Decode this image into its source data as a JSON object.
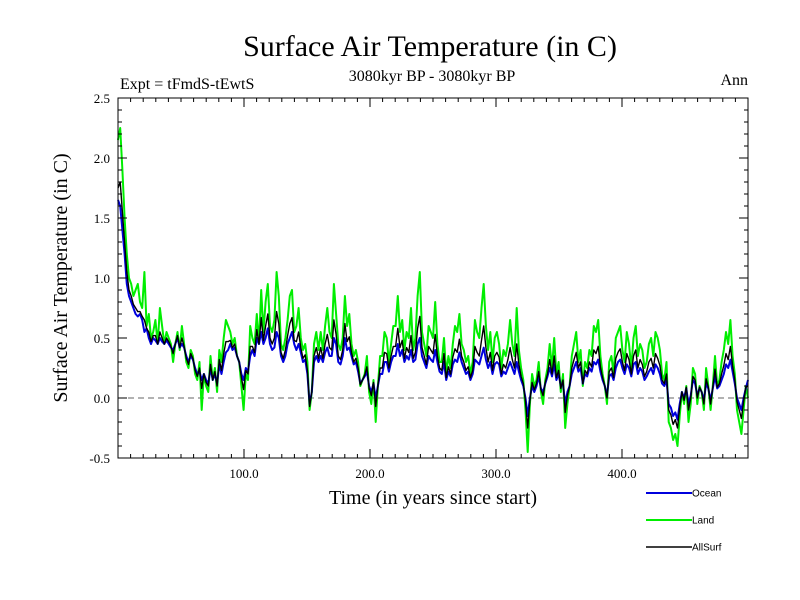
{
  "chart_data": {
    "type": "line",
    "title": "Surface Air Temperature (in C)",
    "subtitle_left": "Expt = tFmdS-tEwtS",
    "subtitle_center": "3080kyr BP - 3080kyr BP",
    "subtitle_right": "Ann",
    "xlabel": "Time (in years since start)",
    "ylabel": "Surface Air Temperature (in C)",
    "xlim": [
      0,
      500
    ],
    "ylim": [
      -0.5,
      2.5
    ],
    "x_ticks": [
      {
        "value": 100,
        "label": "100.0"
      },
      {
        "value": 200,
        "label": "200.0"
      },
      {
        "value": 300,
        "label": "300.0"
      },
      {
        "value": 400,
        "label": "400.0"
      }
    ],
    "y_ticks": [
      {
        "value": -0.5,
        "label": "-0.5"
      },
      {
        "value": 0.0,
        "label": "0.0"
      },
      {
        "value": 0.5,
        "label": "0.5"
      },
      {
        "value": 1.0,
        "label": "1.0"
      },
      {
        "value": 1.5,
        "label": "1.5"
      },
      {
        "value": 2.0,
        "label": "2.0"
      },
      {
        "value": 2.5,
        "label": "2.5"
      }
    ],
    "reference_line": 0.0,
    "series": [
      {
        "name": "Land",
        "color": "#00ee00",
        "values": [
          2.15,
          2.25,
          1.9,
          1.5,
          1.2,
          1.0,
          0.95,
          0.85,
          0.9,
          0.95,
          0.8,
          0.75,
          1.05,
          0.6,
          0.7,
          0.5,
          0.55,
          0.65,
          0.45,
          0.75,
          0.6,
          0.45,
          0.55,
          0.5,
          0.45,
          0.3,
          0.45,
          0.55,
          0.4,
          0.6,
          0.45,
          0.3,
          0.25,
          0.4,
          0.35,
          0.2,
          0.15,
          0.3,
          -0.1,
          0.2,
          0.1,
          0.05,
          0.35,
          0.15,
          0.25,
          0.05,
          0.4,
          0.3,
          0.5,
          0.65,
          0.6,
          0.55,
          0.45,
          0.5,
          0.35,
          0.3,
          0.1,
          -0.1,
          0.2,
          0.15,
          0.6,
          0.5,
          0.45,
          0.7,
          0.45,
          0.9,
          0.55,
          0.8,
          0.95,
          0.6,
          0.55,
          0.65,
          1.05,
          0.85,
          0.45,
          0.4,
          0.5,
          0.65,
          0.85,
          0.9,
          0.55,
          0.6,
          0.75,
          0.5,
          0.4,
          0.45,
          0.3,
          -0.1,
          0.05,
          0.45,
          0.55,
          0.4,
          0.55,
          0.4,
          0.6,
          0.75,
          0.55,
          0.5,
          0.95,
          0.7,
          0.45,
          0.4,
          0.5,
          0.85,
          0.6,
          0.7,
          0.45,
          0.35,
          0.4,
          0.3,
          0.1,
          0.15,
          0.2,
          0.35,
          0.05,
          -0.05,
          0.15,
          -0.2,
          0.1,
          0.35,
          0.35,
          0.55,
          0.5,
          0.3,
          0.45,
          0.6,
          0.6,
          0.85,
          0.55,
          0.65,
          0.4,
          0.55,
          0.5,
          0.75,
          0.4,
          0.5,
          0.85,
          1.05,
          0.55,
          0.45,
          0.35,
          0.6,
          0.55,
          0.5,
          0.8,
          0.45,
          0.3,
          0.3,
          0.5,
          0.2,
          0.35,
          0.25,
          0.45,
          0.6,
          0.55,
          0.7,
          0.45,
          0.4,
          0.3,
          0.35,
          0.2,
          0.3,
          0.65,
          0.55,
          0.5,
          0.75,
          0.95,
          0.6,
          0.4,
          0.55,
          0.3,
          0.5,
          0.55,
          0.45,
          0.25,
          0.4,
          0.35,
          0.45,
          0.65,
          0.45,
          0.35,
          0.75,
          0.4,
          0.25,
          0.15,
          -0.1,
          -0.45,
          -0.05,
          0.2,
          0.1,
          0.15,
          0.3,
          0.05,
          -0.05,
          0.15,
          0.25,
          0.45,
          0.25,
          0.5,
          0.2,
          0.3,
          0.05,
          0.2,
          -0.25,
          -0.05,
          0.1,
          0.35,
          0.45,
          0.55,
          0.3,
          0.4,
          0.1,
          0.3,
          0.25,
          0.4,
          0.35,
          0.6,
          0.55,
          0.65,
          0.35,
          0.2,
          0.1,
          -0.05,
          0.3,
          0.35,
          0.2,
          0.5,
          0.55,
          0.6,
          0.4,
          0.3,
          0.55,
          0.45,
          0.25,
          0.5,
          0.6,
          0.35,
          0.45,
          0.4,
          0.25,
          0.3,
          0.45,
          0.5,
          0.35,
          0.55,
          0.5,
          0.4,
          0.2,
          0.15,
          0.3,
          -0.2,
          -0.25,
          -0.35,
          -0.3,
          -0.4,
          -0.15,
          0.05,
          -0.05,
          0.1,
          -0.2,
          -0.05,
          0.25,
          0.2,
          -0.05,
          0.1,
          0.05,
          -0.1,
          0.25,
          0.1,
          -0.1,
          0.1,
          0.35,
          0.1,
          0.15,
          0.3,
          0.4,
          0.55,
          0.45,
          0.65,
          0.35,
          0.2,
          -0.1,
          -0.2,
          -0.3,
          -0.1,
          0.1,
          0.0
        ]
      },
      {
        "name": "Ocean",
        "color": "#0000dd",
        "values": [
          1.65,
          1.6,
          1.4,
          1.2,
          0.95,
          0.85,
          0.8,
          0.75,
          0.7,
          0.68,
          0.7,
          0.65,
          0.55,
          0.58,
          0.5,
          0.45,
          0.5,
          0.48,
          0.45,
          0.5,
          0.47,
          0.45,
          0.48,
          0.45,
          0.42,
          0.4,
          0.45,
          0.5,
          0.42,
          0.45,
          0.42,
          0.35,
          0.3,
          0.35,
          0.32,
          0.25,
          0.2,
          0.22,
          0.15,
          0.2,
          0.15,
          0.12,
          0.25,
          0.15,
          0.2,
          0.12,
          0.28,
          0.2,
          0.3,
          0.38,
          0.4,
          0.45,
          0.4,
          0.42,
          0.35,
          0.3,
          0.2,
          0.15,
          0.25,
          0.22,
          0.35,
          0.4,
          0.35,
          0.5,
          0.45,
          0.55,
          0.45,
          0.5,
          0.58,
          0.45,
          0.4,
          0.42,
          0.55,
          0.5,
          0.35,
          0.3,
          0.35,
          0.45,
          0.5,
          0.55,
          0.45,
          0.4,
          0.45,
          0.38,
          0.3,
          0.32,
          0.2,
          -0.05,
          0.05,
          0.3,
          0.35,
          0.3,
          0.35,
          0.3,
          0.38,
          0.42,
          0.35,
          0.35,
          0.5,
          0.45,
          0.3,
          0.28,
          0.35,
          0.5,
          0.4,
          0.42,
          0.35,
          0.28,
          0.3,
          0.22,
          0.12,
          0.15,
          0.18,
          0.22,
          0.1,
          0.05,
          0.12,
          0.0,
          0.1,
          0.2,
          0.2,
          0.3,
          0.3,
          0.22,
          0.3,
          0.35,
          0.35,
          0.45,
          0.35,
          0.4,
          0.3,
          0.35,
          0.32,
          0.4,
          0.3,
          0.32,
          0.45,
          0.5,
          0.35,
          0.3,
          0.25,
          0.35,
          0.32,
          0.3,
          0.4,
          0.3,
          0.22,
          0.2,
          0.3,
          0.15,
          0.22,
          0.18,
          0.28,
          0.32,
          0.3,
          0.38,
          0.3,
          0.25,
          0.2,
          0.22,
          0.15,
          0.2,
          0.32,
          0.3,
          0.28,
          0.35,
          0.42,
          0.32,
          0.25,
          0.3,
          0.2,
          0.28,
          0.3,
          0.28,
          0.18,
          0.22,
          0.2,
          0.25,
          0.3,
          0.25,
          0.2,
          0.3,
          0.22,
          0.15,
          0.1,
          0.0,
          -0.15,
          0.0,
          0.1,
          0.05,
          0.1,
          0.18,
          0.08,
          0.05,
          0.12,
          0.18,
          0.25,
          0.18,
          0.28,
          0.15,
          0.2,
          0.1,
          0.12,
          -0.05,
          0.05,
          0.1,
          0.2,
          0.25,
          0.3,
          0.22,
          0.25,
          0.12,
          0.2,
          0.18,
          0.25,
          0.22,
          0.3,
          0.28,
          0.32,
          0.22,
          0.15,
          0.1,
          0.02,
          0.18,
          0.2,
          0.15,
          0.25,
          0.3,
          0.32,
          0.25,
          0.2,
          0.28,
          0.25,
          0.18,
          0.28,
          0.3,
          0.2,
          0.25,
          0.22,
          0.15,
          0.18,
          0.22,
          0.25,
          0.2,
          0.28,
          0.25,
          0.2,
          0.12,
          0.1,
          0.15,
          -0.05,
          -0.08,
          -0.15,
          -0.12,
          -0.18,
          -0.05,
          0.05,
          0.0,
          0.08,
          -0.05,
          0.02,
          0.15,
          0.12,
          0.02,
          0.08,
          0.05,
          -0.02,
          0.12,
          0.08,
          -0.02,
          0.08,
          0.18,
          0.08,
          0.1,
          0.15,
          0.2,
          0.28,
          0.25,
          0.32,
          0.22,
          0.12,
          0.0,
          -0.05,
          -0.1,
          0.0,
          0.08,
          0.15
        ]
      },
      {
        "name": "AllSurf",
        "color": "#000000",
        "values": [
          1.75,
          1.8,
          1.55,
          1.3,
          1.05,
          0.9,
          0.85,
          0.78,
          0.75,
          0.72,
          0.72,
          0.68,
          0.65,
          0.58,
          0.55,
          0.47,
          0.52,
          0.52,
          0.45,
          0.55,
          0.5,
          0.45,
          0.5,
          0.47,
          0.43,
          0.37,
          0.45,
          0.52,
          0.42,
          0.5,
          0.43,
          0.33,
          0.28,
          0.37,
          0.33,
          0.23,
          0.18,
          0.25,
          0.08,
          0.2,
          0.13,
          0.1,
          0.28,
          0.15,
          0.22,
          0.1,
          0.32,
          0.23,
          0.37,
          0.47,
          0.47,
          0.48,
          0.42,
          0.45,
          0.35,
          0.3,
          0.17,
          0.07,
          0.23,
          0.2,
          0.43,
          0.43,
          0.38,
          0.57,
          0.45,
          0.67,
          0.48,
          0.6,
          0.7,
          0.5,
          0.45,
          0.5,
          0.72,
          0.62,
          0.38,
          0.33,
          0.4,
          0.52,
          0.62,
          0.67,
          0.48,
          0.47,
          0.55,
          0.42,
          0.33,
          0.36,
          0.23,
          -0.07,
          0.05,
          0.35,
          0.42,
          0.33,
          0.42,
          0.33,
          0.45,
          0.53,
          0.42,
          0.4,
          0.65,
          0.53,
          0.35,
          0.32,
          0.4,
          0.62,
          0.47,
          0.51,
          0.38,
          0.3,
          0.33,
          0.25,
          0.11,
          0.15,
          0.19,
          0.26,
          0.08,
          0.02,
          0.13,
          -0.07,
          0.1,
          0.25,
          0.25,
          0.38,
          0.37,
          0.25,
          0.35,
          0.43,
          0.43,
          0.58,
          0.42,
          0.48,
          0.33,
          0.42,
          0.38,
          0.52,
          0.33,
          0.38,
          0.58,
          0.68,
          0.42,
          0.35,
          0.28,
          0.43,
          0.4,
          0.37,
          0.53,
          0.35,
          0.25,
          0.23,
          0.37,
          0.17,
          0.26,
          0.2,
          0.34,
          0.41,
          0.38,
          0.49,
          0.35,
          0.3,
          0.23,
          0.26,
          0.17,
          0.23,
          0.43,
          0.38,
          0.35,
          0.48,
          0.6,
          0.42,
          0.3,
          0.38,
          0.23,
          0.35,
          0.38,
          0.34,
          0.2,
          0.28,
          0.25,
          0.32,
          0.42,
          0.32,
          0.25,
          0.45,
          0.28,
          0.18,
          0.12,
          -0.03,
          -0.25,
          -0.02,
          0.13,
          0.07,
          0.12,
          0.22,
          0.07,
          0.02,
          0.13,
          0.2,
          0.32,
          0.2,
          0.35,
          0.17,
          0.23,
          0.08,
          0.15,
          -0.12,
          0.02,
          0.1,
          0.25,
          0.32,
          0.38,
          0.25,
          0.3,
          0.12,
          0.23,
          0.2,
          0.3,
          0.26,
          0.4,
          0.37,
          0.43,
          0.26,
          0.17,
          0.1,
          0.0,
          0.22,
          0.25,
          0.17,
          0.33,
          0.38,
          0.41,
          0.3,
          0.23,
          0.37,
          0.32,
          0.2,
          0.35,
          0.4,
          0.25,
          0.32,
          0.28,
          0.18,
          0.22,
          0.3,
          0.33,
          0.25,
          0.37,
          0.33,
          0.27,
          0.15,
          0.12,
          0.2,
          -0.1,
          -0.14,
          -0.22,
          -0.18,
          -0.25,
          -0.08,
          0.05,
          -0.02,
          0.09,
          -0.1,
          0.0,
          0.18,
          0.15,
          0.0,
          0.09,
          0.05,
          -0.05,
          0.16,
          0.09,
          -0.05,
          0.09,
          0.24,
          0.09,
          0.12,
          0.2,
          0.27,
          0.37,
          0.32,
          0.43,
          0.27,
          0.15,
          -0.03,
          -0.1,
          -0.17,
          -0.03,
          0.09,
          0.1
        ]
      }
    ],
    "legend": {
      "position": "bottom-right",
      "entries": [
        {
          "name": "Ocean",
          "color": "#0000dd"
        },
        {
          "name": "Land",
          "color": "#00ee00"
        },
        {
          "name": "AllSurf",
          "color": "#000000"
        }
      ]
    }
  }
}
